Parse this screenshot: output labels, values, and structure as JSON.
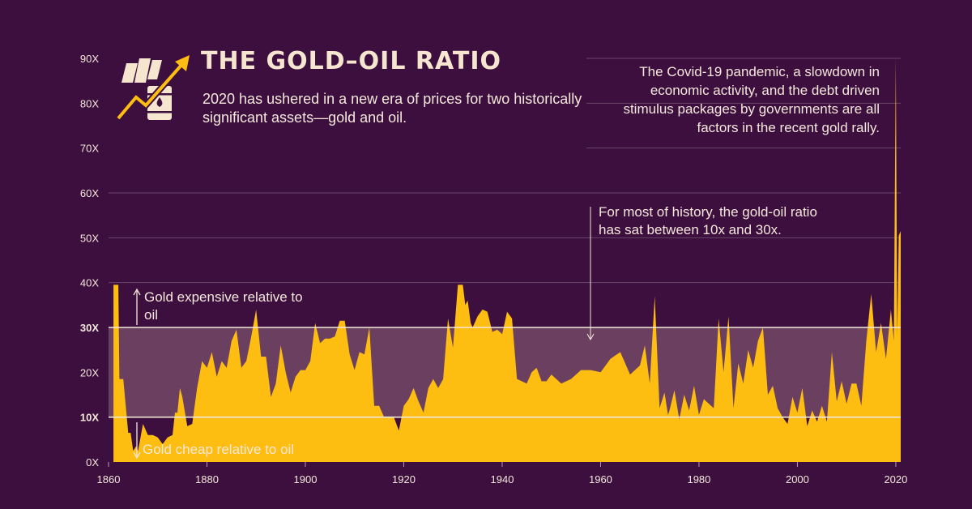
{
  "header": {
    "title": "THE GOLD–OIL RATIO",
    "subtitle": "2020 has ushered in a new era of prices for two historically significant assets—gold and oil."
  },
  "annotations": {
    "covid": "The Covid-19 pandemic, a slowdown in economic activity, and the debt driven stimulus packages by governments are all factors in the recent gold rally.",
    "history": "For most of history, the gold-oil ratio has sat between 10x and 30x.",
    "expensive": "Gold expensive relative to oil",
    "cheap": "Gold cheap relative to oil"
  },
  "colors": {
    "background": "#3d0f3f",
    "area": "#fdbd11",
    "band": "#6b3f5f",
    "text": "#f4e8da"
  },
  "logo_icon": "gold-bars-oil-barrel-rising-arrow-icon",
  "chart_data": {
    "type": "area",
    "xlabel": "",
    "ylabel": "",
    "xlim": [
      1860,
      2021
    ],
    "ylim": [
      0,
      90
    ],
    "x_ticks": [
      "1860",
      "1880",
      "1900",
      "1920",
      "1940",
      "1960",
      "1980",
      "2000",
      "2020"
    ],
    "x_tick_values": [
      1860,
      1880,
      1900,
      1920,
      1940,
      1960,
      1980,
      2000,
      2020
    ],
    "y_ticks": [
      "0X",
      "10X",
      "20X",
      "30X",
      "40X",
      "50X",
      "60X",
      "70X",
      "80X",
      "90X"
    ],
    "y_tick_values": [
      0,
      10,
      20,
      30,
      40,
      50,
      60,
      70,
      80,
      90
    ],
    "highlight_band": [
      10,
      30
    ],
    "highlight_ticks": [
      "10X",
      "30X"
    ],
    "grid": true,
    "series": [
      {
        "x": [
          1861,
          1862,
          1862.2,
          1863,
          1864,
          1864.5,
          1865,
          1865.6,
          1866,
          1866.5,
          1867,
          1868,
          1869,
          1870,
          1871,
          1872,
          1873,
          1873.5,
          1874,
          1874.5,
          1875,
          1876,
          1877,
          1878,
          1879,
          1880,
          1881,
          1882,
          1883,
          1884,
          1885,
          1886,
          1887,
          1888,
          1889,
          1890,
          1891,
          1892,
          1893,
          1894,
          1895,
          1896,
          1897,
          1898,
          1899,
          1900,
          1901,
          1902,
          1903,
          1904,
          1905,
          1906,
          1907,
          1908,
          1909,
          1910,
          1911,
          1912,
          1913,
          1914,
          1915,
          1916,
          1917,
          1918,
          1919,
          1920,
          1921,
          1922,
          1923,
          1924,
          1925,
          1926,
          1927,
          1928,
          1929,
          1930,
          1931,
          1932,
          1932.5,
          1933,
          1933.6,
          1934,
          1935,
          1936,
          1937,
          1938,
          1939,
          1940,
          1941,
          1942,
          1943,
          1944,
          1945,
          1946,
          1947,
          1948,
          1949,
          1950,
          1952,
          1954,
          1956,
          1958,
          1960,
          1962,
          1964,
          1966,
          1968,
          1969,
          1970,
          1971,
          1972,
          1973,
          1973.7,
          1974,
          1975,
          1976,
          1977,
          1978,
          1979,
          1980,
          1981,
          1982,
          1983,
          1984,
          1985,
          1986,
          1987,
          1988,
          1989,
          1990,
          1991,
          1992,
          1993,
          1994,
          1995,
          1996,
          1997,
          1998,
          1999,
          2000,
          2001,
          2002,
          2003,
          2004,
          2005,
          2006,
          2007,
          2008,
          2009,
          2010,
          2011,
          2012,
          2013,
          2014,
          2015,
          2016,
          2017,
          2018,
          2019,
          2019.6,
          2020,
          2020.3,
          2020.6,
          2021
        ],
        "values": [
          39.5,
          39.5,
          18.5,
          18.5,
          6.5,
          6.5,
          2.5,
          3.5,
          2.5,
          5.5,
          8.5,
          6.0,
          6.0,
          5.5,
          4.0,
          5.5,
          6.0,
          11.0,
          11.0,
          16.5,
          14.5,
          8.0,
          8.5,
          16.5,
          22.5,
          21.0,
          24.5,
          19.0,
          22.5,
          21.0,
          27.0,
          29.5,
          21.0,
          22.5,
          28.0,
          34.0,
          23.5,
          23.5,
          14.5,
          17.5,
          26.0,
          20.0,
          15.5,
          19.0,
          20.5,
          20.5,
          22.5,
          31.0,
          26.5,
          27.5,
          27.5,
          28.0,
          31.5,
          31.5,
          24.0,
          20.5,
          24.5,
          24.0,
          30.0,
          12.5,
          12.5,
          10.0,
          10.0,
          10.0,
          7.0,
          12.5,
          14.0,
          16.5,
          13.5,
          11.0,
          16.5,
          18.5,
          16.5,
          18.5,
          32.0,
          25.5,
          39.5,
          39.5,
          35.0,
          36.0,
          31.0,
          30.0,
          32.5,
          34.0,
          33.5,
          29.0,
          29.5,
          28.5,
          33.5,
          32.0,
          18.5,
          18.0,
          17.5,
          20.0,
          21.0,
          18.0,
          18.0,
          19.5,
          17.5,
          18.5,
          20.5,
          20.5,
          20.0,
          23.0,
          24.5,
          19.5,
          21.5,
          26.0,
          17.5,
          37.0,
          12.0,
          15.5,
          10.5,
          11.5,
          16.0,
          9.5,
          15.0,
          11.5,
          17.0,
          10.5,
          14.0,
          13.0,
          12.0,
          32.0,
          20.0,
          32.5,
          12.0,
          22.0,
          17.5,
          25.0,
          21.0,
          27.0,
          30.0,
          15.0,
          17.0,
          12.0,
          10.0,
          8.5,
          14.5,
          11.0,
          16.5,
          8.0,
          11.5,
          9.0,
          12.5,
          9.0,
          24.5,
          13.5,
          18.0,
          13.0,
          17.5,
          17.5,
          12.5,
          27.0,
          37.5,
          24.5,
          31.0,
          23.0,
          34.0,
          27.0,
          90.0,
          28.0,
          50.5,
          51.5
        ]
      }
    ]
  }
}
